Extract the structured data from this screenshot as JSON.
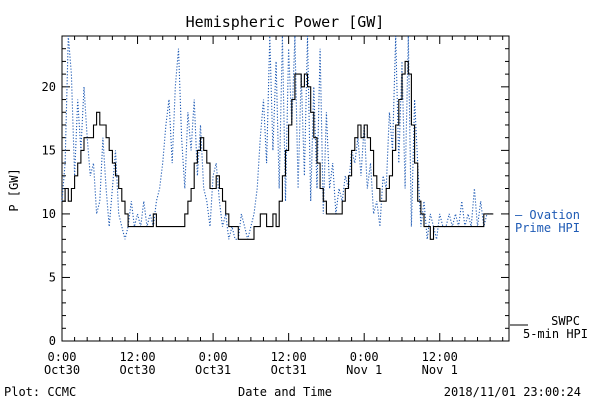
{
  "chart_data": {
    "type": "line",
    "title": "Hemispheric Power [GW]",
    "xlabel": "Date and Time",
    "ylabel": "P [GW]",
    "ylim": [
      0,
      24
    ],
    "xlim_hours": [
      0,
      71
    ],
    "yticks": [
      0,
      5,
      10,
      15,
      20
    ],
    "xticks": [
      {
        "h": 0,
        "line1": "0:00",
        "line2": "Oct30"
      },
      {
        "h": 12,
        "line1": "12:00",
        "line2": "Oct30"
      },
      {
        "h": 24,
        "line1": "0:00",
        "line2": "Oct31"
      },
      {
        "h": 36,
        "line1": "12:00",
        "line2": "Oct31"
      },
      {
        "h": 48,
        "line1": "0:00",
        "line2": "Nov 1"
      },
      {
        "h": 60,
        "line1": "12:00",
        "line2": "Nov 1"
      }
    ],
    "series": [
      {
        "name": "SWPC 5-min HPI",
        "label_line1": "SWPC",
        "label_line2": "5-min HPI",
        "color": "#000000",
        "style": "solid-step",
        "points": [
          [
            0,
            11
          ],
          [
            0.5,
            12
          ],
          [
            1,
            11
          ],
          [
            1.5,
            12
          ],
          [
            2,
            13
          ],
          [
            2.5,
            14
          ],
          [
            3,
            15
          ],
          [
            3.5,
            16
          ],
          [
            4,
            16
          ],
          [
            4.5,
            16
          ],
          [
            5,
            17
          ],
          [
            5.5,
            18
          ],
          [
            6,
            17
          ],
          [
            6.5,
            17
          ],
          [
            7,
            16
          ],
          [
            7.5,
            15
          ],
          [
            8,
            14
          ],
          [
            8.5,
            13
          ],
          [
            9,
            12
          ],
          [
            9.5,
            11
          ],
          [
            10,
            10
          ],
          [
            10.5,
            9
          ],
          [
            11,
            9
          ],
          [
            12,
            9
          ],
          [
            13,
            9
          ],
          [
            14,
            9
          ],
          [
            14.5,
            10
          ],
          [
            15,
            9
          ],
          [
            16,
            9
          ],
          [
            17,
            9
          ],
          [
            18,
            9
          ],
          [
            19,
            9
          ],
          [
            19.5,
            10
          ],
          [
            20,
            11
          ],
          [
            20.5,
            12
          ],
          [
            21,
            14
          ],
          [
            21.5,
            15
          ],
          [
            22,
            16
          ],
          [
            22.5,
            15
          ],
          [
            23,
            14
          ],
          [
            23.5,
            12
          ],
          [
            24,
            12
          ],
          [
            24.5,
            13
          ],
          [
            25,
            12
          ],
          [
            25.5,
            11
          ],
          [
            26,
            10
          ],
          [
            26.5,
            9
          ],
          [
            27,
            9
          ],
          [
            27.5,
            9
          ],
          [
            28,
            8
          ],
          [
            29,
            8
          ],
          [
            30,
            8
          ],
          [
            30.5,
            9
          ],
          [
            31,
            9
          ],
          [
            31.5,
            10
          ],
          [
            32,
            10
          ],
          [
            32.5,
            9
          ],
          [
            33,
            9
          ],
          [
            33.5,
            10
          ],
          [
            34,
            9
          ],
          [
            34.5,
            11
          ],
          [
            35,
            13
          ],
          [
            35.5,
            15
          ],
          [
            36,
            17
          ],
          [
            36.5,
            19
          ],
          [
            37,
            21
          ],
          [
            37.5,
            21
          ],
          [
            38,
            20
          ],
          [
            38.5,
            21
          ],
          [
            39,
            20
          ],
          [
            39.5,
            18
          ],
          [
            40,
            16
          ],
          [
            40.5,
            14
          ],
          [
            41,
            12
          ],
          [
            41.5,
            11
          ],
          [
            42,
            10
          ],
          [
            43,
            10
          ],
          [
            44,
            10
          ],
          [
            44.5,
            11
          ],
          [
            45,
            12
          ],
          [
            45.5,
            13
          ],
          [
            46,
            15
          ],
          [
            46.5,
            16
          ],
          [
            47,
            17
          ],
          [
            47.5,
            16
          ],
          [
            48,
            17
          ],
          [
            48.5,
            16
          ],
          [
            49,
            15
          ],
          [
            49.5,
            13
          ],
          [
            50,
            12
          ],
          [
            50.5,
            11
          ],
          [
            51,
            11
          ],
          [
            51.5,
            12
          ],
          [
            52,
            13
          ],
          [
            52.5,
            15
          ],
          [
            53,
            17
          ],
          [
            53.5,
            19
          ],
          [
            54,
            21
          ],
          [
            54.5,
            22
          ],
          [
            55,
            21
          ],
          [
            55.5,
            17
          ],
          [
            56,
            14
          ],
          [
            56.5,
            11
          ],
          [
            57,
            10
          ],
          [
            57.5,
            9
          ],
          [
            58,
            9
          ],
          [
            58.5,
            8
          ],
          [
            59,
            9
          ],
          [
            60,
            9
          ],
          [
            61,
            9
          ],
          [
            62,
            9
          ],
          [
            63,
            9
          ],
          [
            64,
            9
          ],
          [
            65,
            9
          ],
          [
            66,
            9
          ],
          [
            67,
            10
          ],
          [
            68,
            10
          ],
          [
            68.5,
            10
          ]
        ]
      },
      {
        "name": "Ovation Prime HPI",
        "label_line1": "— Ovation",
        "label_line2": "Prime HPI",
        "color": "#1f5bb5",
        "style": "dotted",
        "points": [
          [
            0,
            11
          ],
          [
            0.5,
            14
          ],
          [
            1,
            24
          ],
          [
            1.5,
            21
          ],
          [
            2,
            13
          ],
          [
            2.5,
            19
          ],
          [
            3,
            15
          ],
          [
            3.5,
            20
          ],
          [
            4,
            16
          ],
          [
            4.5,
            13
          ],
          [
            5,
            14
          ],
          [
            5.5,
            10
          ],
          [
            6,
            11
          ],
          [
            6.5,
            16
          ],
          [
            7,
            12
          ],
          [
            7.5,
            9
          ],
          [
            8,
            12
          ],
          [
            8.5,
            15
          ],
          [
            9,
            10
          ],
          [
            9.5,
            9
          ],
          [
            10,
            8
          ],
          [
            10.5,
            9
          ],
          [
            11,
            11
          ],
          [
            11.5,
            9
          ],
          [
            12,
            10
          ],
          [
            12.5,
            9
          ],
          [
            13,
            11
          ],
          [
            13.5,
            9
          ],
          [
            14,
            10
          ],
          [
            14.5,
            9
          ],
          [
            15,
            11
          ],
          [
            15.5,
            12
          ],
          [
            16,
            14
          ],
          [
            16.5,
            17
          ],
          [
            17,
            19
          ],
          [
            17.5,
            14
          ],
          [
            18,
            20
          ],
          [
            18.5,
            23
          ],
          [
            19,
            16
          ],
          [
            19.5,
            12
          ],
          [
            20,
            18
          ],
          [
            20.5,
            15
          ],
          [
            21,
            19
          ],
          [
            21.5,
            13
          ],
          [
            22,
            17
          ],
          [
            22.5,
            12
          ],
          [
            23,
            11
          ],
          [
            23.5,
            9
          ],
          [
            24,
            13
          ],
          [
            24.5,
            14
          ],
          [
            25,
            11
          ],
          [
            25.5,
            9
          ],
          [
            26,
            10
          ],
          [
            26.5,
            8
          ],
          [
            27,
            9
          ],
          [
            27.5,
            8
          ],
          [
            28,
            8
          ],
          [
            28.5,
            10
          ],
          [
            29,
            9
          ],
          [
            29.5,
            8
          ],
          [
            30,
            9
          ],
          [
            30.5,
            10
          ],
          [
            31,
            12
          ],
          [
            31.5,
            16
          ],
          [
            32,
            19
          ],
          [
            32.5,
            14
          ],
          [
            33,
            24
          ],
          [
            33.5,
            15
          ],
          [
            34,
            22
          ],
          [
            34.5,
            12
          ],
          [
            35,
            24
          ],
          [
            35.5,
            11
          ],
          [
            36,
            23
          ],
          [
            36.5,
            17
          ],
          [
            37,
            24
          ],
          [
            37.5,
            12
          ],
          [
            38,
            21
          ],
          [
            38.5,
            13
          ],
          [
            39,
            24
          ],
          [
            39.5,
            11
          ],
          [
            40,
            20
          ],
          [
            40.5,
            12
          ],
          [
            41,
            23
          ],
          [
            41.5,
            10
          ],
          [
            42,
            18
          ],
          [
            42.5,
            12
          ],
          [
            43,
            14
          ],
          [
            43.5,
            10
          ],
          [
            44,
            12
          ],
          [
            44.5,
            11
          ],
          [
            45,
            13
          ],
          [
            45.5,
            12
          ],
          [
            46,
            15
          ],
          [
            46.5,
            14
          ],
          [
            47,
            16
          ],
          [
            47.5,
            13
          ],
          [
            48,
            17
          ],
          [
            48.5,
            12
          ],
          [
            49,
            14
          ],
          [
            49.5,
            10
          ],
          [
            50,
            11
          ],
          [
            50.5,
            9
          ],
          [
            51,
            13
          ],
          [
            51.5,
            12
          ],
          [
            52,
            18
          ],
          [
            52.5,
            15
          ],
          [
            53,
            24
          ],
          [
            53.5,
            14
          ],
          [
            54,
            22
          ],
          [
            54.5,
            12
          ],
          [
            55,
            24
          ],
          [
            55.5,
            9
          ],
          [
            56,
            19
          ],
          [
            56.5,
            14
          ],
          [
            57,
            9
          ],
          [
            57.5,
            11
          ],
          [
            58,
            8
          ],
          [
            58.5,
            10
          ],
          [
            59,
            9
          ],
          [
            59.5,
            8
          ],
          [
            60,
            10
          ],
          [
            60.5,
            9
          ],
          [
            61,
            9
          ],
          [
            61.5,
            10
          ],
          [
            62,
            9
          ],
          [
            62.5,
            10
          ],
          [
            63,
            9
          ],
          [
            63.5,
            11
          ],
          [
            64,
            9
          ],
          [
            64.5,
            10
          ],
          [
            65,
            9
          ],
          [
            65.5,
            12
          ],
          [
            66,
            9
          ],
          [
            66.5,
            11
          ],
          [
            67,
            9
          ],
          [
            67.5,
            10
          ],
          [
            68,
            10
          ],
          [
            68.5,
            10
          ]
        ]
      }
    ],
    "grid": false,
    "legend": "right-side-labels"
  },
  "footer": {
    "left": "Plot: CCMC",
    "center": "Date and Time",
    "right": "2018/11/01 23:00:24"
  }
}
